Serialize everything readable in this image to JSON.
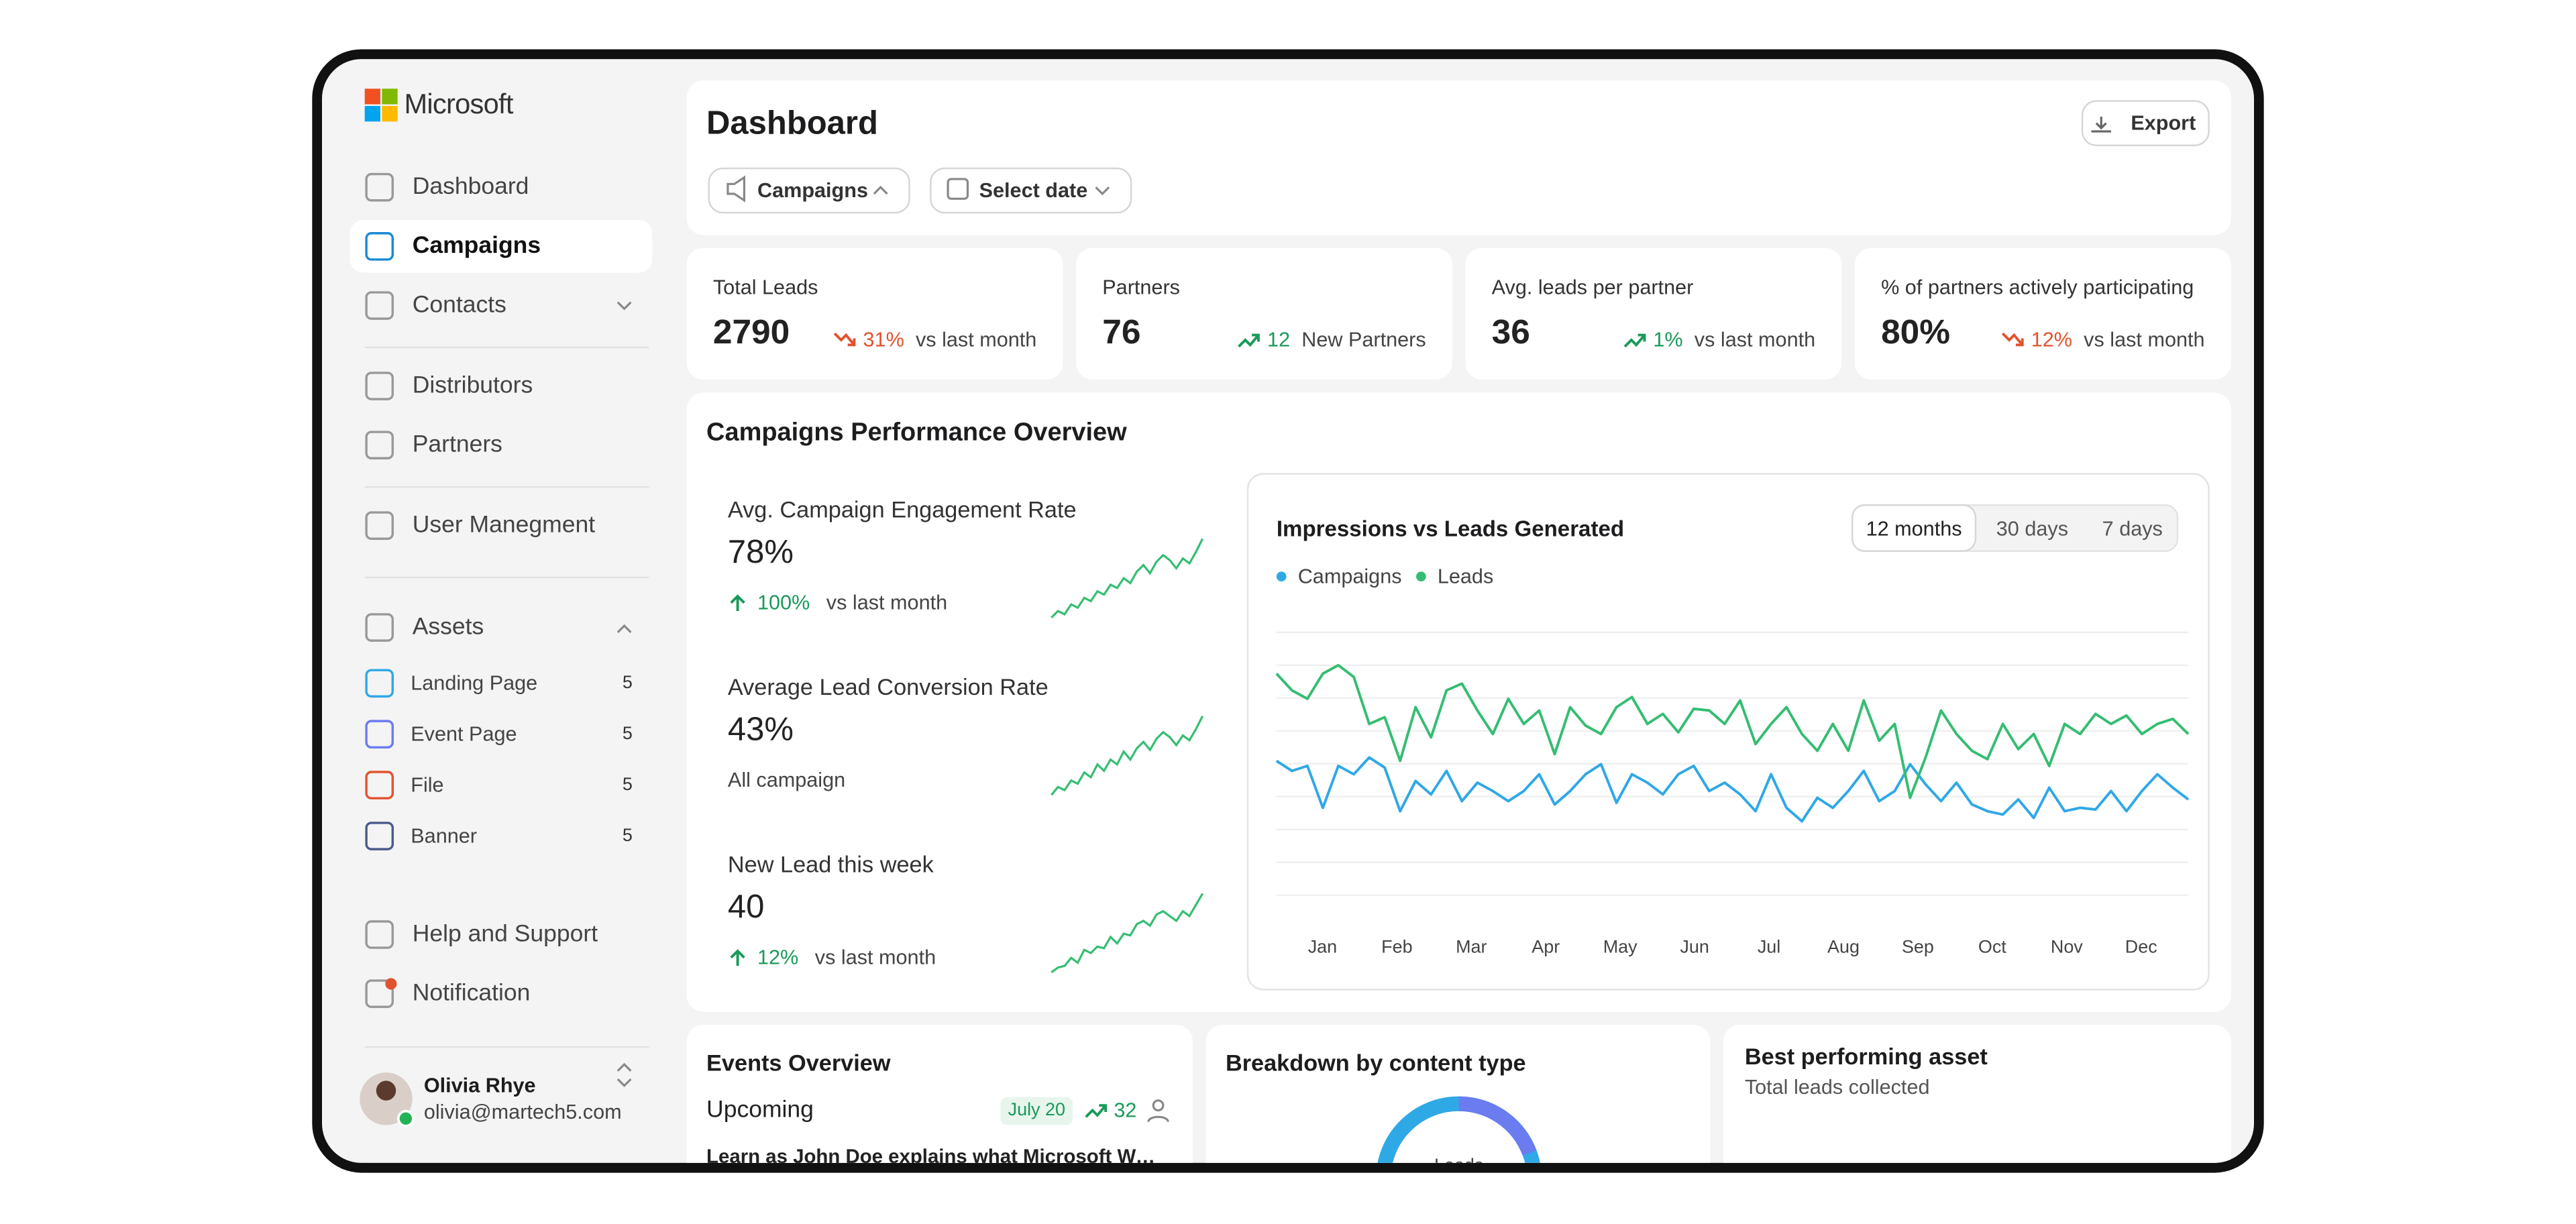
{
  "sidebar": {
    "brand": "Microsoft",
    "nav": [
      "Dashboard",
      "Campaigns",
      "Contacts",
      "Distributors",
      "Partners",
      "User Manegment"
    ],
    "assets": {
      "label": "Assets",
      "items": [
        {
          "label": "Landing Page",
          "count": 5
        },
        {
          "label": "Event Page",
          "count": 5
        },
        {
          "label": "File",
          "count": 5
        },
        {
          "label": "Banner",
          "count": 5
        }
      ]
    },
    "bottom": [
      "Help and Support",
      "Notification"
    ],
    "user": {
      "name": "Olivia Rhye",
      "email": "olivia@martech5.com"
    }
  },
  "header": {
    "title": "Dashboard",
    "export": "Export",
    "filters": [
      "Campaigns",
      "Select date"
    ]
  },
  "stats": [
    {
      "label": "Total Leads",
      "value": 2790,
      "change": "31%",
      "note": "vs last month",
      "trend": "down"
    },
    {
      "label": "Partners",
      "value": 76,
      "change": "12",
      "note": "New Partners",
      "trend": "up"
    },
    {
      "label": "Avg. leads per partner",
      "value": 36,
      "change": "1%",
      "note": "vs last month",
      "trend": "up"
    },
    {
      "label": "% of partners actively participating",
      "value": "80%",
      "change": "12%",
      "note": "vs last month",
      "trend": "down"
    }
  ],
  "overview": {
    "title": "Campaigns Performance Overview",
    "metrics": [
      {
        "label": "Avg. Campaign Engagement Rate",
        "value": "78%",
        "change": "100%",
        "note": "vs last month",
        "spark": [
          10,
          14,
          12,
          18,
          16,
          22,
          20,
          26,
          24,
          30,
          28,
          34,
          31,
          38,
          42,
          37,
          44,
          48,
          45,
          40,
          46,
          43,
          50,
          58
        ]
      },
      {
        "label": "Average Lead Conversion Rate",
        "value": "43%",
        "note": "All campaign",
        "spark": [
          8,
          13,
          11,
          17,
          15,
          22,
          19,
          27,
          23,
          30,
          27,
          35,
          30,
          37,
          41,
          36,
          43,
          47,
          44,
          39,
          45,
          42,
          49,
          57
        ]
      },
      {
        "label": "New Lead this week",
        "value": 40,
        "change": "12%",
        "note": "vs last month",
        "spark": [
          9,
          12,
          13,
          18,
          15,
          23,
          21,
          25,
          24,
          31,
          27,
          33,
          32,
          39,
          41,
          38,
          45,
          47,
          44,
          41,
          47,
          44,
          51,
          58
        ]
      }
    ],
    "chart": {
      "type": "line",
      "title": "Impressions vs Leads Generated",
      "ranges": [
        "12 months",
        "30 days",
        "7 days"
      ],
      "month_labels": [
        "Jan",
        "Feb",
        "Mar",
        "Apr",
        "May",
        "Jun",
        "Jul",
        "Aug",
        "Sep",
        "Oct",
        "Nov",
        "Dec"
      ],
      "series": [
        {
          "name": "Campaigns",
          "color": "#2fa8e6",
          "values": [
            98,
            92,
            95,
            70,
            95,
            90,
            100,
            94,
            68,
            86,
            78,
            92,
            74,
            85,
            80,
            74,
            80,
            90,
            72,
            80,
            90,
            96,
            73,
            90,
            85,
            78,
            90,
            95,
            80,
            85,
            78,
            68,
            90,
            70,
            62,
            76,
            70,
            80,
            92,
            74,
            80,
            96,
            84,
            74,
            85,
            72,
            68,
            66,
            75,
            64,
            82,
            68,
            70,
            69,
            80,
            68,
            80,
            90,
            82,
            75
          ]
        },
        {
          "name": "Leads",
          "color": "#35bd72",
          "values": [
            150,
            140,
            135,
            150,
            155,
            148,
            120,
            124,
            98,
            130,
            112,
            140,
            144,
            128,
            114,
            135,
            120,
            128,
            102,
            130,
            119,
            114,
            130,
            136,
            120,
            126,
            115,
            129,
            128,
            120,
            134,
            108,
            120,
            130,
            114,
            104,
            120,
            104,
            134,
            110,
            120,
            76,
            100,
            128,
            114,
            104,
            99,
            120,
            105,
            114,
            95,
            120,
            114,
            126,
            120,
            125,
            114,
            120,
            123,
            114
          ]
        }
      ]
    }
  },
  "events": {
    "title": "Events Overview",
    "section": "Upcoming",
    "date": "July 20",
    "count": 32,
    "item": "Learn as John Doe explains what Microsoft Word..."
  },
  "breakdown": {
    "title": "Breakdown by content type",
    "center": "Leads"
  },
  "best": {
    "title": "Best performing asset",
    "subtitle": "Total leads collected"
  }
}
